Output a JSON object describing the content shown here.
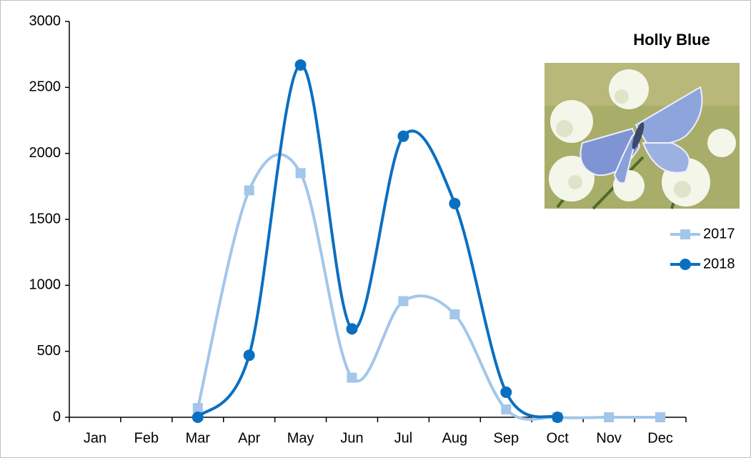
{
  "chart_data": {
    "type": "line",
    "title": "Holly Blue",
    "categories": [
      "Jan",
      "Feb",
      "Mar",
      "Apr",
      "May",
      "Jun",
      "Jul",
      "Aug",
      "Sep",
      "Oct",
      "Nov",
      "Dec"
    ],
    "series": [
      {
        "name": "2017",
        "color": "#a3c6ea",
        "marker": "square",
        "values": [
          null,
          null,
          70,
          1720,
          1850,
          300,
          880,
          780,
          60,
          0,
          0,
          0
        ]
      },
      {
        "name": "2018",
        "color": "#0b6fc1",
        "marker": "circle",
        "values": [
          null,
          null,
          0,
          470,
          2670,
          670,
          2130,
          1620,
          190,
          0,
          null,
          null
        ]
      }
    ],
    "ylim": [
      0,
      3000
    ],
    "yticks": [
      0,
      500,
      1000,
      1500,
      2000,
      2500,
      3000
    ],
    "smooth": true,
    "legend": "right",
    "grid": false
  }
}
